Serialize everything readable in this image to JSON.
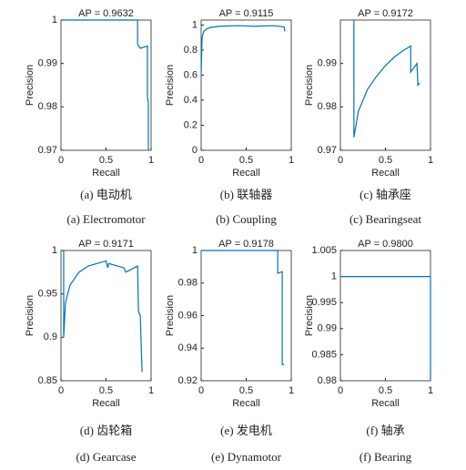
{
  "chart_data": [
    {
      "type": "line",
      "title": "AP = 0.9632",
      "xlabel": "Recall",
      "ylabel": "Precision",
      "caption": "(a)  电动机",
      "caption_en": "(a) Electromotor",
      "color": "#0072bd",
      "xlim": [
        0,
        1
      ],
      "xticks": [
        0,
        0.5,
        1
      ],
      "ylim": [
        0.97,
        1
      ],
      "yticks": [
        0.97,
        0.98,
        0.99,
        1
      ],
      "x": [
        0,
        0.85,
        0.85,
        0.88,
        0.96,
        0.96,
        0.97,
        0.97
      ],
      "values": [
        1,
        1,
        0.9945,
        0.9935,
        0.994,
        0.982,
        0.981,
        0.97
      ]
    },
    {
      "type": "line",
      "title": "AP = 0.9115",
      "xlabel": "Recall",
      "ylabel": "Precision",
      "caption": "(b)  联轴器",
      "caption_en": "(b) Coupling",
      "color": "#0072bd",
      "xlim": [
        0,
        1
      ],
      "xticks": [
        0,
        0.5,
        1
      ],
      "ylim": [
        0,
        1.04
      ],
      "yticks": [
        0,
        0.2,
        0.4,
        0.6,
        0.8,
        1
      ],
      "x": [
        0,
        0.01,
        0.03,
        0.06,
        0.1,
        0.2,
        0.4,
        0.6,
        0.8,
        0.92,
        0.93
      ],
      "values": [
        0.6,
        0.9,
        0.95,
        0.97,
        0.98,
        0.99,
        0.995,
        0.99,
        0.995,
        0.985,
        0.95
      ]
    },
    {
      "type": "line",
      "title": "AP = 0.9172",
      "xlabel": "Recall",
      "ylabel": "Precision",
      "caption": "(c)  轴承座",
      "caption_en": "(c) Bearingseat",
      "color": "#0072bd",
      "xlim": [
        0,
        1
      ],
      "xticks": [
        0,
        0.5,
        1
      ],
      "ylim": [
        0.97,
        1
      ],
      "yticks": [
        0.97,
        0.98,
        0.99
      ],
      "x": [
        0.15,
        0.15,
        0.2,
        0.3,
        0.4,
        0.5,
        0.6,
        0.7,
        0.78,
        0.78,
        0.85,
        0.86,
        0.88
      ],
      "values": [
        1,
        0.973,
        0.979,
        0.984,
        0.987,
        0.9895,
        0.9915,
        0.993,
        0.994,
        0.988,
        0.99,
        0.985,
        0.9855
      ]
    },
    {
      "type": "line",
      "title": "AP = 0.9171",
      "xlabel": "Recall",
      "ylabel": "Precision",
      "caption": "(d)  齿轮箱",
      "caption_en": "(d) Gearcase",
      "color": "#0072bd",
      "xlim": [
        0,
        1
      ],
      "xticks": [
        0,
        0.5,
        1
      ],
      "ylim": [
        0.85,
        1
      ],
      "yticks": [
        0.85,
        0.9,
        0.95,
        1
      ],
      "x": [
        0.03,
        0.03,
        0.05,
        0.1,
        0.2,
        0.3,
        0.5,
        0.52,
        0.53,
        0.7,
        0.72,
        0.85,
        0.86,
        0.88,
        0.9
      ],
      "values": [
        1,
        0.9,
        0.94,
        0.96,
        0.975,
        0.982,
        0.988,
        0.98,
        0.985,
        0.98,
        0.975,
        0.982,
        0.93,
        0.925,
        0.86
      ]
    },
    {
      "type": "line",
      "title": "AP = 0.9178",
      "xlabel": "Recall",
      "ylabel": "Precision",
      "caption": "(e)  发电机",
      "caption_en": "(e) Dynamotor",
      "color": "#0072bd",
      "xlim": [
        0,
        1
      ],
      "xticks": [
        0,
        0.5,
        1
      ],
      "ylim": [
        0.92,
        1
      ],
      "yticks": [
        0.92,
        0.94,
        0.96,
        0.98,
        1
      ],
      "x": [
        0,
        0.85,
        0.85,
        0.9,
        0.9,
        0.92
      ],
      "values": [
        1,
        1,
        0.986,
        0.987,
        0.93,
        0.93
      ]
    },
    {
      "type": "line",
      "title": "AP = 0.9800",
      "xlabel": "Recall",
      "ylabel": "Precision",
      "caption": "(f)  轴承",
      "caption_en": "(f) Bearing",
      "color": "#0072bd",
      "xlim": [
        0,
        1
      ],
      "xticks": [
        0,
        0.5,
        1
      ],
      "ylim": [
        0.98,
        1.005
      ],
      "yticks": [
        0.98,
        0.985,
        0.99,
        0.995,
        1,
        1.005
      ],
      "x": [
        0,
        1,
        1
      ],
      "values": [
        1,
        1,
        0.98
      ]
    }
  ]
}
